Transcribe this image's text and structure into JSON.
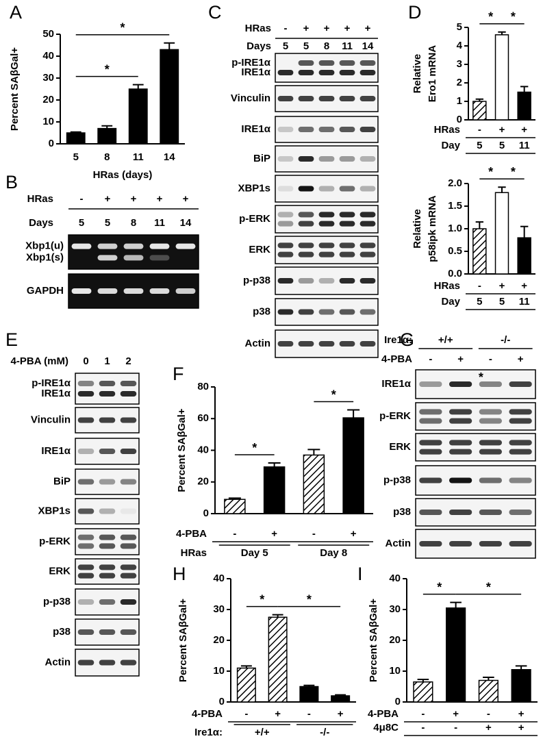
{
  "chart_data": [
    {
      "panel": "A",
      "type": "bar",
      "ylabel": "Percent SAβGal+",
      "xlabel": "HRas (days)",
      "categories": [
        "5",
        "8",
        "11",
        "14"
      ],
      "values": [
        5,
        7,
        25,
        43
      ],
      "errors": [
        0.4,
        1.2,
        2,
        3
      ],
      "fills": [
        "black",
        "black",
        "black",
        "black"
      ],
      "ylim": [
        0,
        50
      ],
      "yticks": [
        0,
        10,
        20,
        30,
        40,
        50
      ],
      "significance": [
        {
          "label": "*",
          "from": 0,
          "to": 2
        },
        {
          "label": "*",
          "from": 0,
          "to": 3
        }
      ]
    },
    {
      "panel": "D",
      "type": "bar",
      "ylabel": [
        "Relative",
        "Ero1 mRNA"
      ],
      "conditions": [
        {
          "name": "HRas",
          "values": [
            "-",
            "+",
            "+"
          ]
        },
        {
          "name": "Day",
          "values": [
            "5",
            "5",
            "11"
          ]
        }
      ],
      "values": [
        1,
        4.6,
        1.5
      ],
      "errors": [
        0.12,
        0.15,
        0.3
      ],
      "fills": [
        "hatch",
        "white",
        "black"
      ],
      "ylim": [
        0,
        5
      ],
      "yticks": [
        0,
        1,
        2,
        3,
        4,
        5
      ],
      "significance": [
        {
          "label": "*",
          "from": 0,
          "to": 1
        },
        {
          "label": "*",
          "from": 1,
          "to": 2
        }
      ]
    },
    {
      "type": "bar",
      "ylabel": [
        "Relative",
        "p58ipk mRNA"
      ],
      "conditions": [
        {
          "name": "HRas",
          "values": [
            "-",
            "+",
            "+"
          ]
        },
        {
          "name": "Day",
          "values": [
            "5",
            "5",
            "11"
          ]
        }
      ],
      "values": [
        1,
        1.8,
        0.8
      ],
      "errors": [
        0.15,
        0.12,
        0.25
      ],
      "fills": [
        "hatch",
        "white",
        "black"
      ],
      "ylim": [
        0,
        2
      ],
      "yticks": [
        {
          "value": 0,
          "label": "0.0"
        },
        0.5,
        {
          "value": 1,
          "label": "1.0"
        },
        1.5,
        {
          "value": 2,
          "label": "2.0"
        }
      ],
      "significance": [
        {
          "label": "*",
          "from": 0,
          "to": 1
        },
        {
          "label": "*",
          "from": 1,
          "to": 2
        }
      ]
    },
    {
      "panel": "F",
      "type": "bar",
      "ylabel": "Percent SAβGal+",
      "conditions": [
        {
          "name": "4-PBA",
          "values": [
            "-",
            "+",
            "-",
            "+"
          ]
        },
        {
          "name": "HRas",
          "groups": [
            {
              "label": "Day 5",
              "from": 0,
              "to": 1
            },
            {
              "label": "Day 8",
              "from": 2,
              "to": 3
            }
          ]
        }
      ],
      "values": [
        9,
        29.5,
        37,
        60.5
      ],
      "errors": [
        0.8,
        2.5,
        3.5,
        5
      ],
      "fills": [
        "hatch",
        "black",
        "hatch",
        "black"
      ],
      "ylim": [
        0,
        80
      ],
      "yticks": [
        0,
        20,
        40,
        60,
        80
      ],
      "significance": [
        {
          "label": "*",
          "from": 0,
          "to": 1
        },
        {
          "label": "*",
          "from": 2,
          "to": 3
        }
      ]
    },
    {
      "panel": "H",
      "type": "bar",
      "ylabel": "Percent SAβGal+",
      "conditions": [
        {
          "name": "4-PBA",
          "values": [
            "-",
            "+",
            "-",
            "+"
          ]
        },
        {
          "name": "Ire1α:",
          "groups": [
            {
              "label": "+/+",
              "from": 0,
              "to": 1
            },
            {
              "label": "-/-",
              "from": 2,
              "to": 3
            }
          ]
        }
      ],
      "values": [
        11,
        27.5,
        5,
        2
      ],
      "errors": [
        0.7,
        0.8,
        0.4,
        0.3
      ],
      "fills": [
        "hatch",
        "hatch",
        "black",
        "black"
      ],
      "ylim": [
        0,
        40
      ],
      "yticks": [
        0,
        10,
        20,
        30,
        40
      ],
      "significance": [
        {
          "label": "*",
          "from": 0,
          "to": 1
        },
        {
          "label": "*",
          "from": 1,
          "to": 3
        }
      ]
    },
    {
      "panel": "I",
      "type": "bar",
      "ylabel": "Percent SAβGal+",
      "conditions": [
        {
          "name": "4-PBA",
          "values": [
            "-",
            "+",
            "-",
            "+"
          ]
        },
        {
          "name": "4μ8C",
          "values": [
            "-",
            "-",
            "+",
            "+"
          ]
        }
      ],
      "values": [
        6.5,
        30.5,
        7,
        10.5
      ],
      "errors": [
        0.8,
        1.8,
        1,
        1.2
      ],
      "fills": [
        "hatch",
        "black",
        "hatch",
        "black"
      ],
      "ylim": [
        0,
        40
      ],
      "yticks": [
        0,
        10,
        20,
        30,
        40
      ],
      "significance": [
        {
          "label": "*",
          "from": 0,
          "to": 1
        },
        {
          "label": "*",
          "from": 1,
          "to": 3
        }
      ]
    }
  ],
  "blots": [
    {
      "panel": "B",
      "style": "gel",
      "header": [
        {
          "name": "HRas",
          "values": [
            "-",
            "+",
            "+",
            "+",
            "+"
          ]
        },
        {
          "name": "Days",
          "values": [
            "5",
            "5",
            "8",
            "11",
            "14"
          ]
        }
      ],
      "rows": [
        {
          "labels": [
            "Xbp1(u)",
            "Xbp1(s)"
          ]
        },
        {
          "labels": [
            "GAPDH"
          ]
        }
      ]
    },
    {
      "panel": "C",
      "style": "blot",
      "header": [
        {
          "name": "HRas",
          "values": [
            "-",
            "+",
            "+",
            "+",
            "+"
          ]
        },
        {
          "name": "Days",
          "values": [
            "5",
            "5",
            "8",
            "11",
            "14"
          ]
        }
      ],
      "rows": [
        {
          "labels": [
            "p-IRE1α",
            "IRE1α"
          ]
        },
        {
          "labels": [
            "Vinculin"
          ]
        },
        {
          "labels": [
            "IRE1α"
          ]
        },
        {
          "labels": [
            "BiP"
          ]
        },
        {
          "labels": [
            "XBP1s"
          ]
        },
        {
          "labels": [
            "p-ERK"
          ]
        },
        {
          "labels": [
            "ERK"
          ]
        },
        {
          "labels": [
            "p-p38"
          ]
        },
        {
          "labels": [
            "p38"
          ]
        },
        {
          "labels": [
            "Actin"
          ]
        }
      ]
    },
    {
      "panel": "E",
      "style": "blot",
      "header": [
        {
          "name": "4-PBA (mM)",
          "values": [
            "0",
            "1",
            "2"
          ]
        }
      ],
      "rows": [
        {
          "labels": [
            "p-IRE1α",
            "IRE1α"
          ]
        },
        {
          "labels": [
            "Vinculin"
          ]
        },
        {
          "labels": [
            "IRE1α"
          ]
        },
        {
          "labels": [
            "BiP"
          ]
        },
        {
          "labels": [
            "XBP1s"
          ]
        },
        {
          "labels": [
            "p-ERK"
          ]
        },
        {
          "labels": [
            "ERK"
          ]
        },
        {
          "labels": [
            "p-p38"
          ]
        },
        {
          "labels": [
            "p38"
          ]
        },
        {
          "labels": [
            "Actin"
          ]
        }
      ]
    },
    {
      "panel": "G",
      "style": "blot",
      "header": [
        {
          "name": "Ire1α:",
          "groups": [
            {
              "label": "+/+",
              "from": 0,
              "to": 1
            },
            {
              "label": "-/-",
              "from": 2,
              "to": 3
            }
          ]
        },
        {
          "name": "4-PBA",
          "values": [
            "-",
            "+",
            "-",
            "+"
          ]
        }
      ],
      "rows": [
        {
          "labels": [
            "IRE1α"
          ]
        },
        {
          "labels": [
            "p-ERK"
          ]
        },
        {
          "labels": [
            "ERK"
          ]
        },
        {
          "labels": [
            "p-p38"
          ]
        },
        {
          "labels": [
            "p38"
          ]
        },
        {
          "labels": [
            "Actin"
          ]
        }
      ],
      "annotations": [
        {
          "text": "*",
          "row": 0,
          "lane": 2
        }
      ]
    }
  ]
}
